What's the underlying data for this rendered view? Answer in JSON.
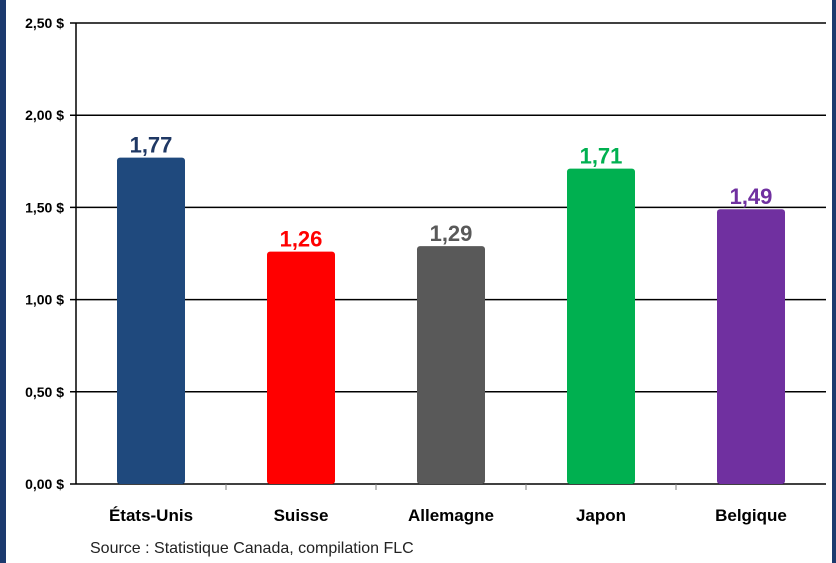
{
  "chart_data": {
    "type": "bar",
    "categories": [
      "États-Unis",
      "Suisse",
      "Allemagne",
      "Japon",
      "Belgique"
    ],
    "values": [
      1.77,
      1.26,
      1.29,
      1.71,
      1.49
    ],
    "data_labels": [
      "1,77",
      "1,26",
      "1,29",
      "1,71",
      "1,49"
    ],
    "bar_colors": [
      "#1f497d",
      "#ff0000",
      "#595959",
      "#00b050",
      "#7030a0"
    ],
    "label_colors": [
      "#1f3864",
      "#ff0000",
      "#595959",
      "#00b050",
      "#7030a0"
    ],
    "ylim": [
      0,
      2.5
    ],
    "yticks": [
      0,
      0.5,
      1.0,
      1.5,
      2.0,
      2.5
    ],
    "ytick_labels": [
      "0,00 $",
      "0,50 $",
      "1,00 $",
      "1,50 $",
      "2,00 $",
      "2,50 $"
    ],
    "grid": true,
    "title": "",
    "xlabel": "",
    "ylabel": ""
  },
  "footer": {
    "source": "Source : Statistique Canada, compilation FLC"
  },
  "colors": {
    "frame": "#1c3a6e",
    "grid": "#000000",
    "axis_text": "#000000"
  }
}
